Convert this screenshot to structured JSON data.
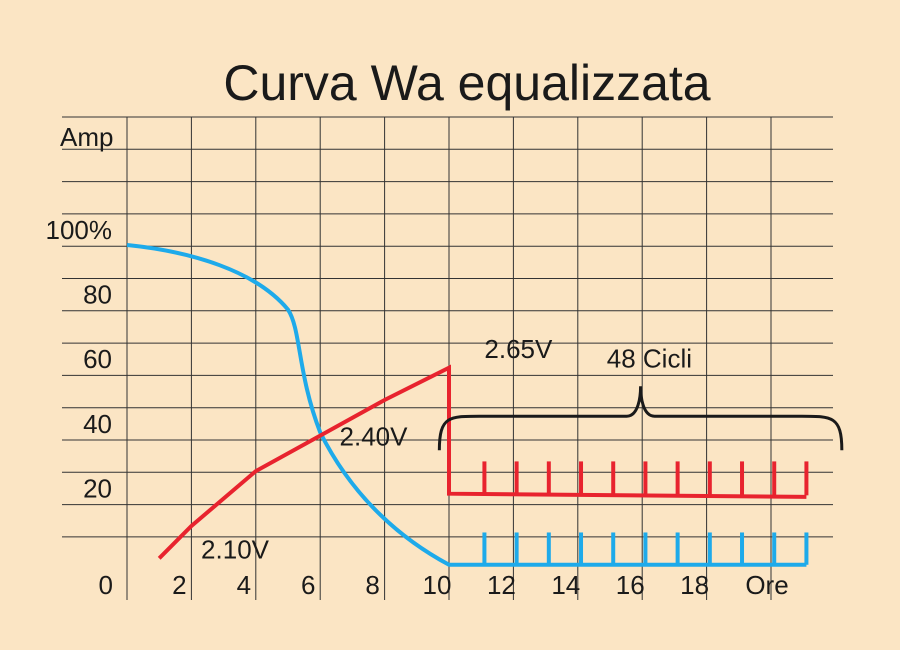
{
  "chart_data": {
    "type": "line",
    "title": "Curva Wa equalizzata",
    "ylabel": "Amp",
    "xlabel": "Ore",
    "y_ticks": [
      "0",
      "20",
      "40",
      "60",
      "80",
      "100%"
    ],
    "y_tick_values": [
      0,
      20,
      40,
      60,
      80,
      100
    ],
    "x_ticks": [
      "0",
      "2",
      "4",
      "6",
      "8",
      "10",
      "12",
      "14",
      "16",
      "18",
      "Ore"
    ],
    "x_tick_values": [
      0,
      2,
      4,
      6,
      8,
      10,
      12,
      14,
      16,
      18,
      20
    ],
    "xlim": [
      0,
      22
    ],
    "ylim": [
      -10,
      140
    ],
    "grid": true,
    "series": [
      {
        "color": "#1eaaea",
        "points": [
          [
            0,
            100
          ],
          [
            2,
            97
          ],
          [
            4,
            89
          ],
          [
            5,
            81
          ],
          [
            5.5,
            60
          ],
          [
            6,
            41
          ],
          [
            7,
            25
          ],
          [
            8,
            15
          ],
          [
            9,
            8
          ],
          [
            10,
            1
          ],
          [
            21.1,
            1
          ]
        ],
        "pulse_x": [
          11.1,
          12.1,
          13.1,
          14.1,
          15.1,
          16.1,
          17.1,
          18.1,
          19.1,
          20.1,
          21.1
        ],
        "pulse_top": 11
      },
      {
        "color": "#e8232e",
        "points": [
          [
            1,
            3
          ],
          [
            2,
            13
          ],
          [
            4,
            30
          ],
          [
            6,
            41
          ],
          [
            8,
            52
          ],
          [
            10,
            62
          ],
          [
            10,
            23
          ],
          [
            21.1,
            22
          ]
        ],
        "pulse_x": [
          11.1,
          12.1,
          13.1,
          14.1,
          15.1,
          16.1,
          17.1,
          18.1,
          19.1,
          20.1,
          21.1
        ],
        "pulse_top": 33
      }
    ],
    "annotations": [
      {
        "text": "2.10V",
        "x": 2.3,
        "y": 3
      },
      {
        "text": "2.40V",
        "x": 6.6,
        "y": 38
      },
      {
        "text": "2.65V",
        "x": 11.1,
        "y": 65
      },
      {
        "text": "48 Cicli",
        "x": 14.9,
        "y": 62
      }
    ],
    "brace": {
      "label": "48 Cicli",
      "x_start": 9.7,
      "x_end": 22.2,
      "y": 47
    }
  }
}
